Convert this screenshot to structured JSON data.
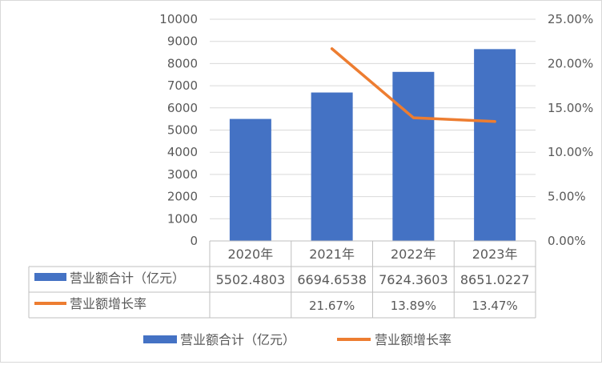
{
  "chart_data": {
    "type": "bar",
    "categories": [
      "2020年",
      "2021年",
      "2022年",
      "2023年"
    ],
    "series": [
      {
        "name": "营业额合计（亿元）",
        "type": "bar",
        "axis": "left",
        "color": "#4472C4",
        "values": [
          5502.4803,
          6694.6538,
          7624.3603,
          8651.0227
        ],
        "table_labels": [
          "5502.4803",
          "6694.6538",
          "7624.3603",
          "8651.0227"
        ]
      },
      {
        "name": "营业额增长率",
        "type": "line",
        "axis": "right",
        "color": "#ED7D31",
        "values": [
          null,
          21.67,
          13.89,
          13.47
        ],
        "table_labels": [
          "",
          "21.67%",
          "13.89%",
          "13.47%"
        ]
      }
    ],
    "y_left": {
      "ylim": [
        0,
        10000
      ],
      "ticks": [
        "0",
        "1000",
        "2000",
        "3000",
        "4000",
        "5000",
        "6000",
        "7000",
        "8000",
        "9000",
        "10000"
      ]
    },
    "y_right": {
      "ylim": [
        0,
        25
      ],
      "ticks": [
        "0.00%",
        "5.00%",
        "10.00%",
        "15.00%",
        "20.00%",
        "25.00%"
      ]
    },
    "grid": true,
    "data_table": true,
    "legend_position": "bottom"
  }
}
